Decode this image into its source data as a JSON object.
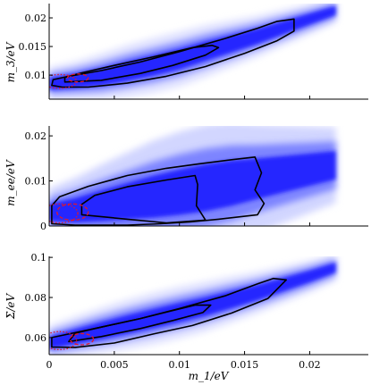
{
  "colors": {
    "density": "#1a1aff",
    "contour": "#000000",
    "reference_contour": "#e0182a",
    "axis": "#000000"
  },
  "chart_data": [
    {
      "type": "heatmap",
      "panel": "top",
      "xlabel": "",
      "ylabel": "m_3/eV",
      "xlim": [
        0,
        0.0245
      ],
      "ylim": [
        0.0058,
        0.0225
      ],
      "yticks": [
        0.01,
        0.015,
        0.02
      ],
      "ytick_labels": [
        "0.01",
        "0.015",
        "0.02"
      ],
      "xticks": [
        0,
        0.005,
        0.01,
        0.015,
        0.02
      ],
      "xtick_labels": [
        "",
        "",
        "",
        "",
        ""
      ],
      "density_ridge": {
        "x": [
          0,
          0.002,
          0.004,
          0.006,
          0.008,
          0.01,
          0.012,
          0.014,
          0.016,
          0.018,
          0.02,
          0.022
        ],
        "y": [
          0.0085,
          0.009,
          0.0097,
          0.0107,
          0.0117,
          0.0128,
          0.0142,
          0.0155,
          0.0168,
          0.0183,
          0.0198,
          0.0213
        ],
        "w": [
          0.0012,
          0.0014,
          0.0017,
          0.0019,
          0.002,
          0.002,
          0.0019,
          0.0017,
          0.0015,
          0.0013,
          0.0011,
          0.0009
        ]
      },
      "contours": [
        {
          "name": "outer",
          "points": [
            [
              0.0002,
              0.0082
            ],
            [
              0.001,
              0.0079
            ],
            [
              0.003,
              0.0079
            ],
            [
              0.006,
              0.0086
            ],
            [
              0.009,
              0.0098
            ],
            [
              0.012,
              0.0115
            ],
            [
              0.015,
              0.0138
            ],
            [
              0.0175,
              0.016
            ],
            [
              0.0188,
              0.0177
            ],
            [
              0.0188,
              0.0198
            ],
            [
              0.0175,
              0.0194
            ],
            [
              0.016,
              0.0182
            ],
            [
              0.0135,
              0.0164
            ],
            [
              0.01,
              0.0141
            ],
            [
              0.007,
              0.0123
            ],
            [
              0.004,
              0.0108
            ],
            [
              0.0015,
              0.0098
            ],
            [
              0.0003,
              0.0092
            ],
            [
              0.0002,
              0.0082
            ]
          ]
        },
        {
          "name": "inner",
          "points": [
            [
              0.0012,
              0.0088
            ],
            [
              0.004,
              0.0091
            ],
            [
              0.007,
              0.0103
            ],
            [
              0.0095,
              0.0117
            ],
            [
              0.012,
              0.0135
            ],
            [
              0.013,
              0.0148
            ],
            [
              0.0125,
              0.0152
            ],
            [
              0.011,
              0.0148
            ],
            [
              0.008,
              0.0132
            ],
            [
              0.005,
              0.0117
            ],
            [
              0.0025,
              0.0104
            ],
            [
              0.0012,
              0.0096
            ],
            [
              0.0012,
              0.0088
            ]
          ]
        }
      ],
      "reference_contours": [
        {
          "name": "dotted",
          "center": [
            0.0008,
            0.0089
          ],
          "radius": [
            0.0013,
            0.0012
          ],
          "style": "dotted"
        },
        {
          "name": "dashed",
          "center": [
            0.0022,
            0.0095
          ],
          "radius": [
            0.0008,
            0.0007
          ],
          "style": "dashed"
        }
      ]
    },
    {
      "type": "heatmap",
      "panel": "middle",
      "xlabel": "",
      "ylabel": "m_ee/eV",
      "xlim": [
        0,
        0.0245
      ],
      "ylim": [
        0,
        0.0222
      ],
      "yticks": [
        0,
        0.01,
        0.02
      ],
      "ytick_labels": [
        "0",
        "0.01",
        "0.02"
      ],
      "xticks": [
        0,
        0.005,
        0.01,
        0.015,
        0.02
      ],
      "xtick_labels": [
        "",
        "",
        "",
        "",
        ""
      ],
      "density_ridge": {
        "x": [
          0,
          0.002,
          0.004,
          0.006,
          0.008,
          0.01,
          0.012,
          0.014,
          0.016,
          0.018,
          0.02,
          0.022
        ],
        "y": [
          0.003,
          0.0035,
          0.0045,
          0.0055,
          0.0065,
          0.0075,
          0.0085,
          0.0095,
          0.0105,
          0.0115,
          0.0125,
          0.0135
        ],
        "w": [
          0.0022,
          0.003,
          0.0038,
          0.0045,
          0.0052,
          0.0056,
          0.0058,
          0.0056,
          0.005,
          0.0045,
          0.004,
          0.0035
        ]
      },
      "contours": [
        {
          "name": "outer",
          "points": [
            [
              0.0002,
              0.0005
            ],
            [
              0.002,
              0.0002
            ],
            [
              0.006,
              0.0002
            ],
            [
              0.0085,
              0.0005
            ],
            [
              0.0108,
              0.0009
            ],
            [
              0.013,
              0.0015
            ],
            [
              0.016,
              0.0025
            ],
            [
              0.0165,
              0.005
            ],
            [
              0.0158,
              0.008
            ],
            [
              0.0163,
              0.0118
            ],
            [
              0.0158,
              0.0153
            ],
            [
              0.014,
              0.0147
            ],
            [
              0.0115,
              0.0138
            ],
            [
              0.009,
              0.0128
            ],
            [
              0.006,
              0.0112
            ],
            [
              0.003,
              0.0088
            ],
            [
              0.0008,
              0.0065
            ],
            [
              0.0002,
              0.0045
            ],
            [
              0.0002,
              0.0005
            ]
          ]
        },
        {
          "name": "inner",
          "points": [
            [
              0.0025,
              0.0025
            ],
            [
              0.006,
              0.0015
            ],
            [
              0.009,
              0.0007
            ],
            [
              0.012,
              0.0013
            ],
            [
              0.0113,
              0.0045
            ],
            [
              0.0114,
              0.0092
            ],
            [
              0.0112,
              0.0112
            ],
            [
              0.009,
              0.0102
            ],
            [
              0.006,
              0.0087
            ],
            [
              0.0035,
              0.0068
            ],
            [
              0.0025,
              0.0048
            ],
            [
              0.0025,
              0.0025
            ]
          ]
        }
      ],
      "reference_contours": [
        {
          "name": "dotted",
          "center": [
            0.0008,
            0.0028
          ],
          "radius": [
            0.0014,
            0.0021
          ],
          "style": "dotted"
        },
        {
          "name": "dashed",
          "center": [
            0.0018,
            0.0031
          ],
          "radius": [
            0.0012,
            0.0018
          ],
          "style": "dashed"
        }
      ]
    },
    {
      "type": "heatmap",
      "panel": "bottom",
      "xlabel": "m_1/eV",
      "ylabel": "Σ/eV",
      "xlim": [
        0,
        0.0245
      ],
      "ylim": [
        0.0515,
        0.1005
      ],
      "yticks": [
        0.06,
        0.08,
        0.1
      ],
      "ytick_labels": [
        "0.06",
        "0.08",
        "0.1"
      ],
      "xticks": [
        0,
        0.005,
        0.01,
        0.015,
        0.02
      ],
      "xtick_labels": [
        "0",
        "0.005",
        "0.01",
        "0.015",
        "0.02"
      ],
      "density_ridge": {
        "x": [
          0,
          0.002,
          0.004,
          0.006,
          0.008,
          0.01,
          0.012,
          0.014,
          0.016,
          0.018,
          0.02,
          0.022
        ],
        "y": [
          0.0575,
          0.0605,
          0.0635,
          0.0665,
          0.0695,
          0.0725,
          0.0755,
          0.079,
          0.0825,
          0.0865,
          0.0905,
          0.095
        ],
        "w": [
          0.0035,
          0.0042,
          0.0048,
          0.0052,
          0.0054,
          0.0054,
          0.0052,
          0.0048,
          0.0043,
          0.0038,
          0.0033,
          0.0028
        ]
      },
      "contours": [
        {
          "name": "outer",
          "points": [
            [
              0.0002,
              0.0553
            ],
            [
              0.002,
              0.0551
            ],
            [
              0.005,
              0.0573
            ],
            [
              0.008,
              0.0618
            ],
            [
              0.011,
              0.066
            ],
            [
              0.014,
              0.0722
            ],
            [
              0.0168,
              0.0795
            ],
            [
              0.0182,
              0.0888
            ],
            [
              0.0172,
              0.0895
            ],
            [
              0.016,
              0.0868
            ],
            [
              0.0135,
              0.0808
            ],
            [
              0.01,
              0.0745
            ],
            [
              0.007,
              0.0695
            ],
            [
              0.004,
              0.0652
            ],
            [
              0.0015,
              0.0618
            ],
            [
              0.0002,
              0.06
            ],
            [
              0.0002,
              0.0553
            ]
          ]
        },
        {
          "name": "inner",
          "points": [
            [
              0.0015,
              0.058
            ],
            [
              0.004,
              0.0605
            ],
            [
              0.007,
              0.0645
            ],
            [
              0.0095,
              0.0685
            ],
            [
              0.0118,
              0.0725
            ],
            [
              0.0124,
              0.0762
            ],
            [
              0.0112,
              0.0762
            ],
            [
              0.0095,
              0.0735
            ],
            [
              0.007,
              0.0695
            ],
            [
              0.004,
              0.0652
            ],
            [
              0.002,
              0.0622
            ],
            [
              0.0015,
              0.058
            ]
          ]
        }
      ],
      "reference_contours": [
        {
          "name": "dotted",
          "center": [
            0.0008,
            0.0585
          ],
          "radius": [
            0.0013,
            0.0045
          ],
          "style": "dotted"
        },
        {
          "name": "dashed",
          "center": [
            0.0025,
            0.0592
          ],
          "radius": [
            0.0009,
            0.0028
          ],
          "style": "dashed"
        }
      ]
    }
  ]
}
